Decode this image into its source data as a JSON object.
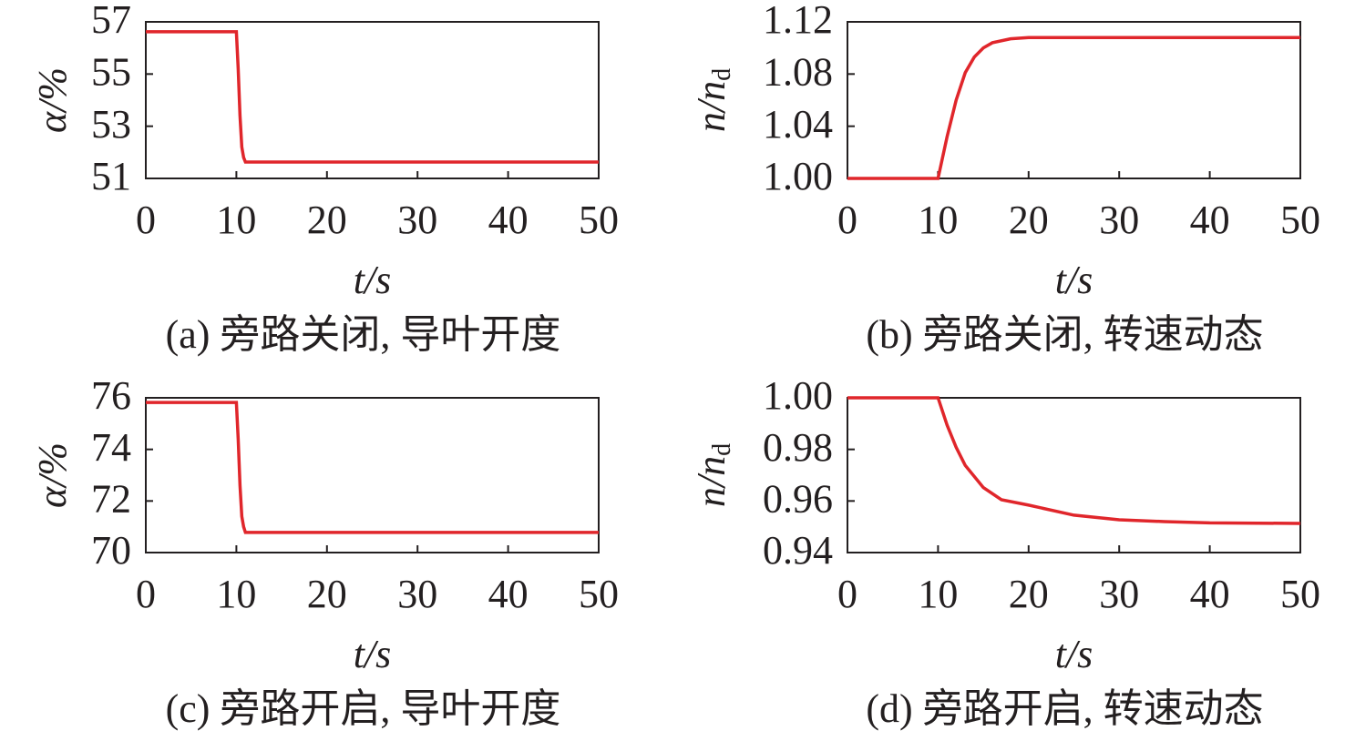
{
  "chart_data": [
    {
      "type": "line",
      "ylabel": "α/%",
      "xlabel": "t/s",
      "caption": "(a) 旁路关闭, 导叶开度",
      "color": "#e0262b",
      "x": [
        0,
        10,
        10.2,
        10.4,
        10.6,
        10.8,
        11,
        50
      ],
      "values": [
        56.62,
        56.62,
        55.2,
        53.4,
        52.2,
        51.8,
        51.63,
        51.63
      ],
      "xlim": [
        0,
        50
      ],
      "xticks": [
        0,
        10,
        20,
        30,
        40,
        50
      ],
      "ylim": [
        51,
        57
      ],
      "yticks": [
        51,
        53,
        55,
        57
      ]
    },
    {
      "type": "line",
      "ylabel": "n/n",
      "ylabel_subscript": "d",
      "xlabel": "t/s",
      "caption": "(b) 旁路关闭, 转速动态",
      "color": "#e0262b",
      "x": [
        0,
        10,
        11,
        12,
        13,
        14,
        15,
        16,
        18,
        20,
        50
      ],
      "values": [
        1.0,
        1.0,
        1.032,
        1.06,
        1.081,
        1.093,
        1.1,
        1.104,
        1.107,
        1.108,
        1.108
      ],
      "xlim": [
        0,
        50
      ],
      "xticks": [
        0,
        10,
        20,
        30,
        40,
        50
      ],
      "ylim": [
        1.0,
        1.12
      ],
      "yticks": [
        {
          "value": 1.0,
          "label": "1.00"
        },
        1.04,
        1.08,
        1.12
      ]
    },
    {
      "type": "line",
      "ylabel": "α/%",
      "xlabel": "t/s",
      "caption": "(c) 旁路开启, 导叶开度",
      "color": "#e0262b",
      "x": [
        0,
        10,
        10.2,
        10.4,
        10.6,
        10.8,
        11,
        50
      ],
      "values": [
        75.82,
        75.82,
        74.4,
        72.6,
        71.4,
        71.0,
        70.78,
        70.78
      ],
      "xlim": [
        0,
        50
      ],
      "xticks": [
        0,
        10,
        20,
        30,
        40,
        50
      ],
      "ylim": [
        70,
        76
      ],
      "yticks": [
        70,
        72,
        74,
        76
      ]
    },
    {
      "type": "line",
      "ylabel": "n/n",
      "ylabel_subscript": "d",
      "xlabel": "t/s",
      "caption": "(d) 旁路开启, 转速动态",
      "color": "#e0262b",
      "x": [
        0,
        10,
        11,
        12,
        13,
        15,
        17,
        20,
        25,
        30,
        35,
        40,
        50
      ],
      "values": [
        1.0,
        1.0,
        0.9894,
        0.9808,
        0.9738,
        0.9652,
        0.9605,
        0.9584,
        0.9545,
        0.9527,
        0.952,
        0.9515,
        0.9513
      ],
      "xlim": [
        0,
        50
      ],
      "xticks": [
        0,
        10,
        20,
        30,
        40,
        50
      ],
      "ylim": [
        0.94,
        1.0
      ],
      "yticks": [
        0.94,
        0.96,
        0.98,
        {
          "value": 1.0,
          "label": "1.00"
        }
      ]
    }
  ]
}
